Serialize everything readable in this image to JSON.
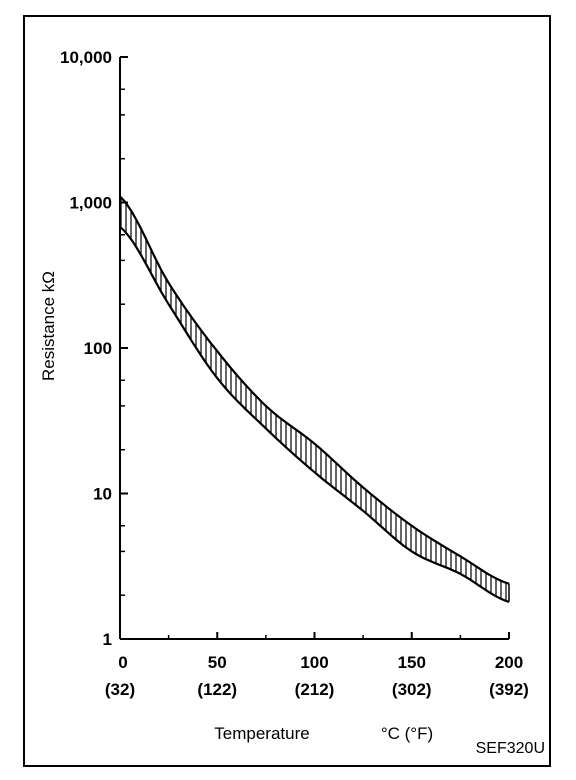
{
  "chart_data": {
    "type": "area",
    "xlabel": "Temperature",
    "xunit": "°C (°F)",
    "ylabel": "Resistance kΩ",
    "y_scale": "log",
    "xlim": [
      0,
      200
    ],
    "ylim": [
      1,
      10000
    ],
    "x_ticks": [
      {
        "value": 0,
        "label": "0",
        "sublabel": "(32)"
      },
      {
        "value": 50,
        "label": "50",
        "sublabel": "(122)"
      },
      {
        "value": 100,
        "label": "100",
        "sublabel": "(212)"
      },
      {
        "value": 150,
        "label": "150",
        "sublabel": "(302)"
      },
      {
        "value": 200,
        "label": "200",
        "sublabel": "(392)"
      }
    ],
    "y_ticks": [
      {
        "value": 1,
        "label": "1"
      },
      {
        "value": 10,
        "label": "10"
      },
      {
        "value": 100,
        "label": "100"
      },
      {
        "value": 1000,
        "label": "1,000"
      },
      {
        "value": 10000,
        "label": "10,000"
      }
    ],
    "x": [
      0,
      25,
      50,
      75,
      100,
      125,
      150,
      175,
      200
    ],
    "series": [
      {
        "values": [
          1100,
          280,
          95,
          40,
          22,
          11,
          6,
          3.7,
          2.4
        ]
      },
      {
        "values": [
          680,
          200,
          62,
          28,
          14,
          7.6,
          4,
          2.8,
          1.8
        ]
      }
    ],
    "grid": false,
    "figure_code": "SEF320U"
  }
}
